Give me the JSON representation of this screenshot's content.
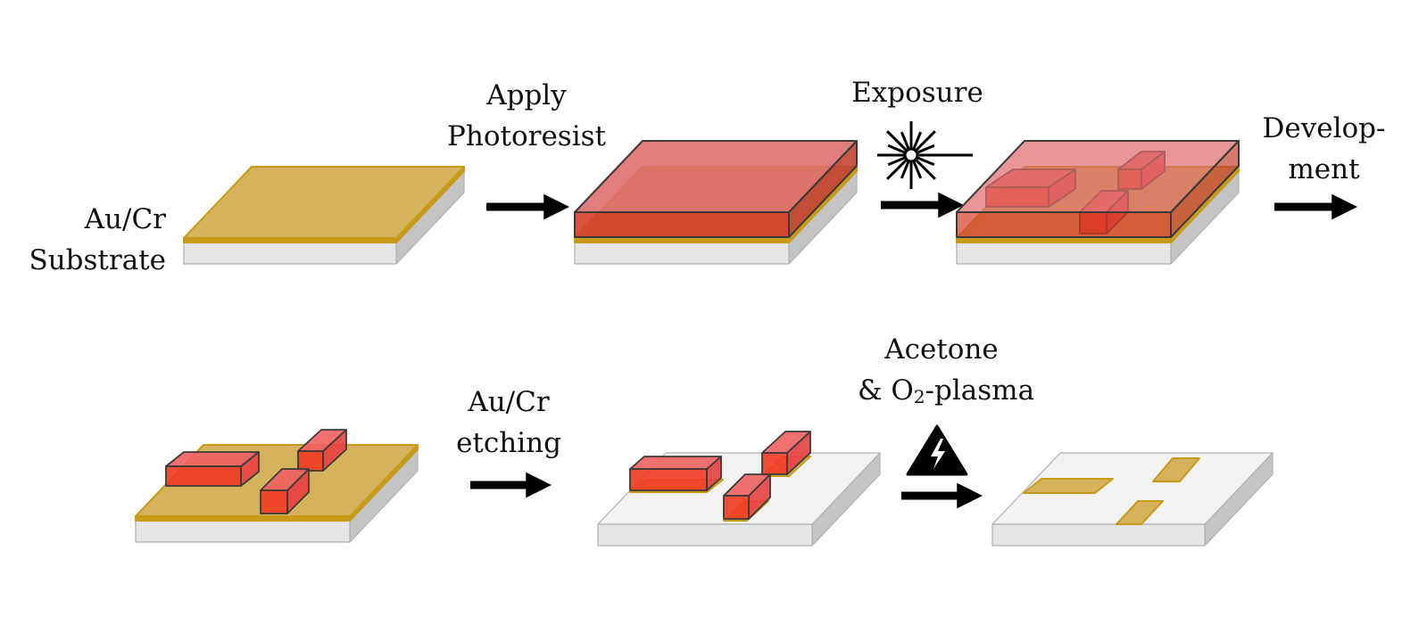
{
  "colors": {
    "substrate_top": "#f2f2f2",
    "substrate_front": "#e6e6e6",
    "substrate_side": "#c4c4c4",
    "gold": "#d4b35c",
    "gold_edge": "#c89a1a",
    "resist_top": "#dd6b6b",
    "resist_front": "#d43a28",
    "resist_side": "#c04030",
    "block_top": "#f06060",
    "block_front": "#f03a22",
    "block_side": "#e84040",
    "outline": "#3a3a3a"
  },
  "labels": {
    "substrate_line1": "Au/Cr",
    "substrate_line2": "Substrate",
    "apply_line1": "Apply",
    "apply_line2": "Photoresist",
    "exposure": "Exposure",
    "development_line1": "Develop-",
    "development_line2": "ment",
    "etching_line1": "Au/Cr",
    "etching_line2": "etching",
    "acetone_line1": "Acetone",
    "acetone_line2_prefix": "& O",
    "acetone_subscript": "2",
    "acetone_line2_suffix": "-plasma"
  },
  "icons": {
    "exposure": "laser-starburst-icon",
    "plasma": "high-voltage-warning-icon",
    "arrow": "right-arrow-icon"
  }
}
